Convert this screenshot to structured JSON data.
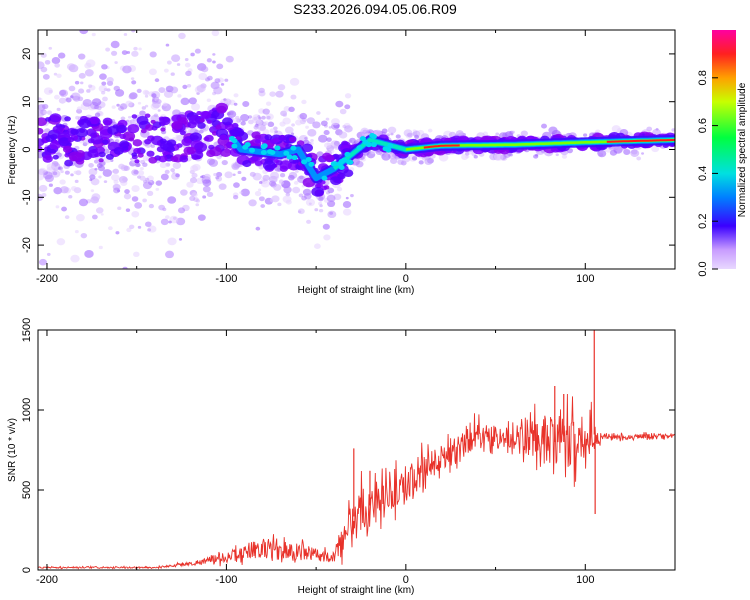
{
  "title": "S233.2026.094.05.06.R09",
  "chart_data": [
    {
      "type": "heatmap",
      "name": "spectrogram",
      "xlabel": "Height of straight line (km)",
      "ylabel": "Frequency (Hz)",
      "xlim": [
        -205,
        150
      ],
      "ylim": [
        -25,
        25
      ],
      "xticks": [
        -200,
        -100,
        0,
        100
      ],
      "yticks": [
        -20,
        -10,
        0,
        10,
        20
      ],
      "colorbar": {
        "label": "Normalized spectral amplitude",
        "range": [
          0,
          1
        ],
        "ticks": [
          "0.0",
          "0.2",
          "0.4",
          "0.6",
          "0.8"
        ],
        "tick_values": [
          0,
          0.2,
          0.4,
          0.6,
          0.8
        ]
      },
      "ridge": [
        {
          "x": -200,
          "y": 2
        },
        {
          "x": -150,
          "y": 2
        },
        {
          "x": -120,
          "y": 3
        },
        {
          "x": -100,
          "y": 4
        },
        {
          "x": -92,
          "y": 0
        },
        {
          "x": -70,
          "y": -1
        },
        {
          "x": -60,
          "y": 0
        },
        {
          "x": -50,
          "y": -6
        },
        {
          "x": -40,
          "y": -4
        },
        {
          "x": -30,
          "y": -1
        },
        {
          "x": -20,
          "y": 2
        },
        {
          "x": -10,
          "y": 1
        },
        {
          "x": 0,
          "y": 0
        },
        {
          "x": 20,
          "y": 0.8
        },
        {
          "x": 60,
          "y": 1
        },
        {
          "x": 100,
          "y": 1.5
        },
        {
          "x": 150,
          "y": 2
        }
      ]
    },
    {
      "type": "line",
      "name": "snr",
      "xlabel": "Height of straight line (km)",
      "ylabel": "SNR (10 * v/v)",
      "xlim": [
        -205,
        150
      ],
      "ylim": [
        0,
        1500
      ],
      "xticks": [
        -200,
        -100,
        0,
        100
      ],
      "yticks": [
        0,
        500,
        1000,
        1500
      ],
      "color": "#e8322a",
      "envelope": [
        {
          "x": -205,
          "mean": 15,
          "jitter": 8
        },
        {
          "x": -140,
          "mean": 15,
          "jitter": 8
        },
        {
          "x": -120,
          "mean": 40,
          "jitter": 20
        },
        {
          "x": -100,
          "mean": 80,
          "jitter": 60
        },
        {
          "x": -80,
          "mean": 140,
          "jitter": 110
        },
        {
          "x": -60,
          "mean": 110,
          "jitter": 90
        },
        {
          "x": -40,
          "mean": 80,
          "jitter": 60
        },
        {
          "x": -32,
          "mean": 300,
          "jitter": 260
        },
        {
          "x": -25,
          "mean": 380,
          "jitter": 260
        },
        {
          "x": -10,
          "mean": 450,
          "jitter": 200
        },
        {
          "x": 0,
          "mean": 550,
          "jitter": 200
        },
        {
          "x": 20,
          "mean": 700,
          "jitter": 180
        },
        {
          "x": 40,
          "mean": 850,
          "jitter": 150
        },
        {
          "x": 60,
          "mean": 820,
          "jitter": 120
        },
        {
          "x": 75,
          "mean": 800,
          "jitter": 300
        },
        {
          "x": 95,
          "mean": 800,
          "jitter": 300
        },
        {
          "x": 104,
          "mean": 850,
          "jitter": 200
        },
        {
          "x": 110,
          "mean": 830,
          "jitter": 30
        },
        {
          "x": 150,
          "mean": 840,
          "jitter": 25
        }
      ],
      "peaks": [
        {
          "x": -29,
          "y": 760
        },
        {
          "x": -20,
          "y": 620
        },
        {
          "x": 83,
          "y": 1150
        },
        {
          "x": 88,
          "y": 1100
        },
        {
          "x": 105,
          "y": 1500
        },
        {
          "x": 105.5,
          "y": 350
        }
      ]
    }
  ]
}
